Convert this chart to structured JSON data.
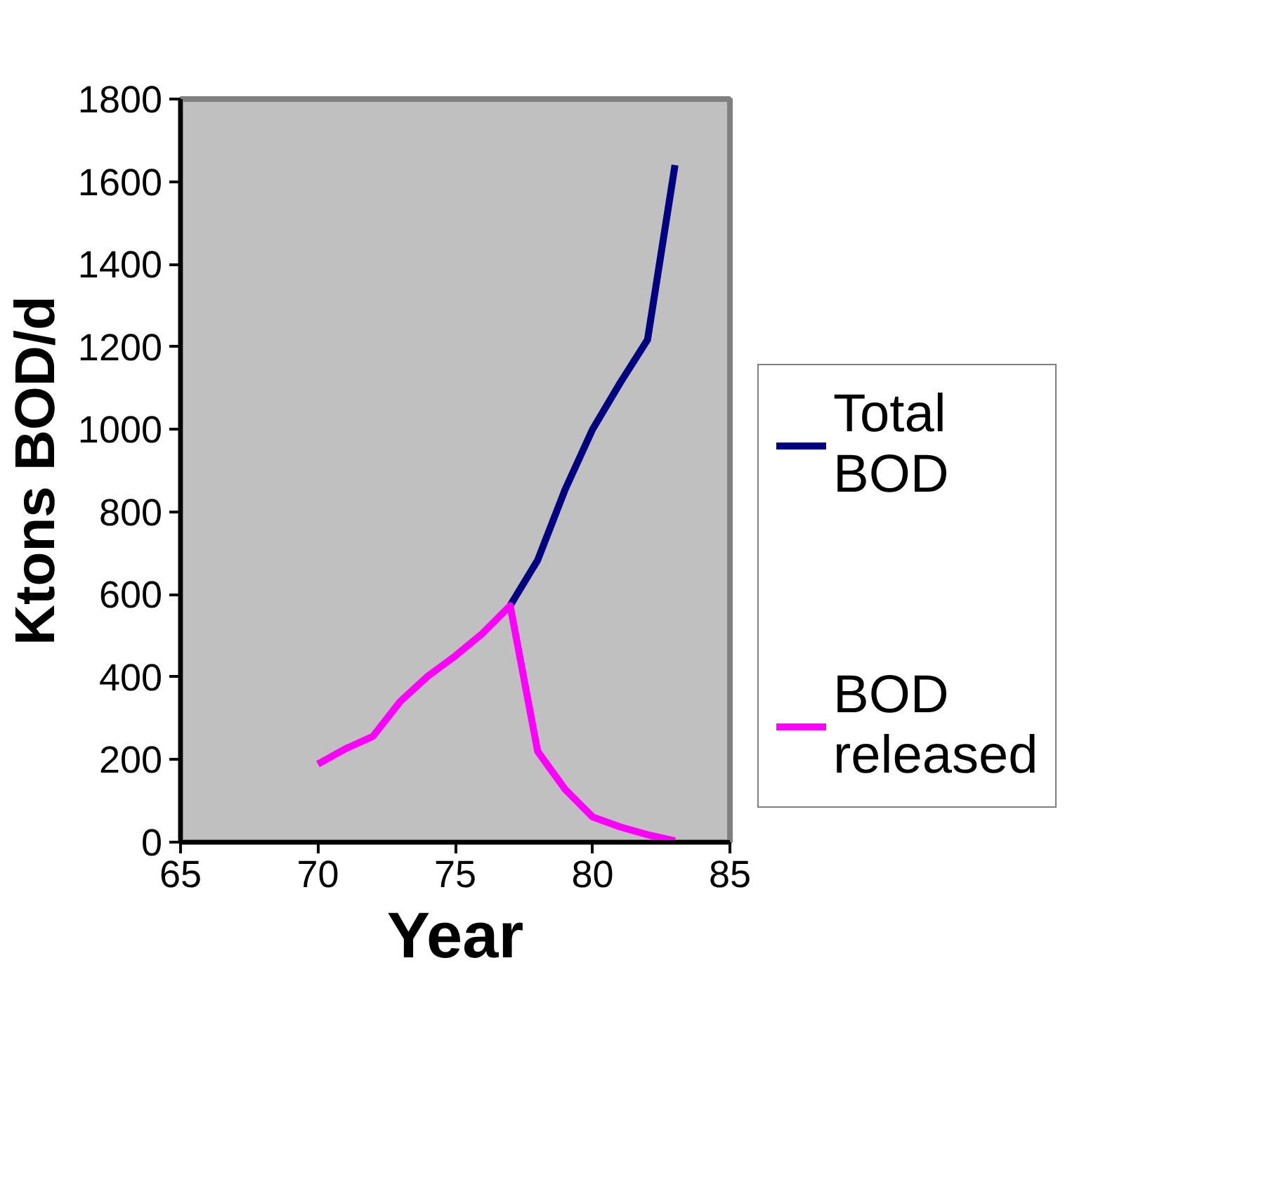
{
  "chart_data": {
    "type": "line",
    "xlabel": "Year",
    "ylabel": "Ktons BOD/d",
    "xlim": [
      65,
      85
    ],
    "xticks": [
      65,
      70,
      75,
      80,
      85
    ],
    "ylim": [
      0,
      1800
    ],
    "yticks": [
      0,
      200,
      400,
      600,
      800,
      1000,
      1200,
      1400,
      1600,
      1800
    ],
    "grid": false,
    "legend": "right",
    "marker": "none",
    "line_style": "solid",
    "series": [
      {
        "name": "Total BOD",
        "color": "#000080",
        "x": [
          77,
          78,
          79,
          80,
          81,
          82,
          83
        ],
        "values": [
          573,
          683,
          854,
          1000,
          1112,
          1217,
          1640
        ]
      },
      {
        "name": "BOD released",
        "color": "#ff00ff",
        "x": [
          70,
          71,
          72,
          73,
          74,
          75,
          76,
          77,
          78,
          79,
          80,
          81,
          82,
          83
        ],
        "values": [
          189,
          226,
          256,
          341,
          402,
          451,
          506,
          573,
          220,
          128,
          61,
          37,
          18,
          3
        ]
      }
    ]
  }
}
